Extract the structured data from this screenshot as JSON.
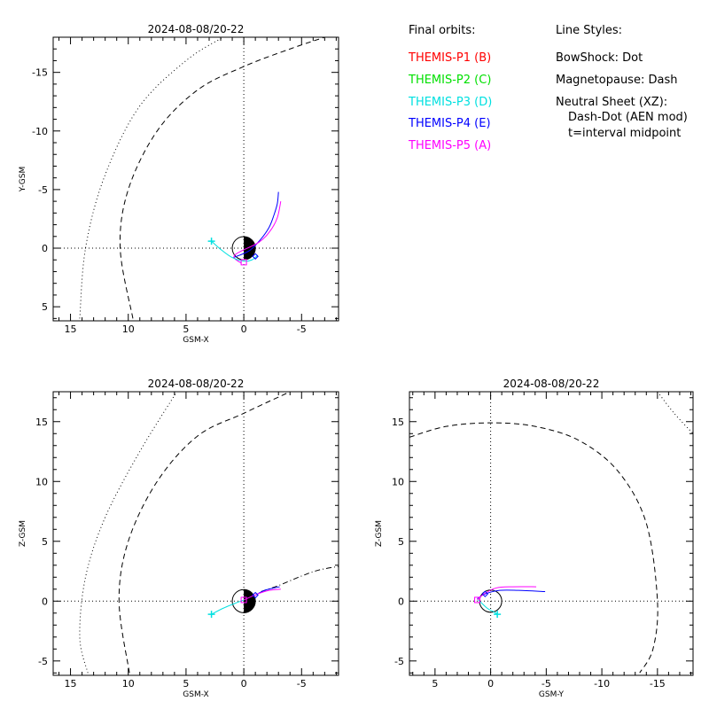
{
  "legend": {
    "orbits_header": "Final orbits:",
    "probes": [
      {
        "label": "THEMIS-P1 (B)",
        "color": "#ff0000"
      },
      {
        "label": "THEMIS-P2 (C)",
        "color": "#00e000"
      },
      {
        "label": "THEMIS-P3 (D)",
        "color": "#00e0e0"
      },
      {
        "label": "THEMIS-P4 (E)",
        "color": "#0000ff"
      },
      {
        "label": "THEMIS-P5 (A)",
        "color": "#ff00ff"
      }
    ],
    "styles_header": "Line Styles:",
    "styles": [
      "BowShock: Dot",
      "Magnetopause: Dash",
      "Neutral Sheet (XZ):",
      "Dash-Dot (AEN mod)",
      "t=interval midpoint"
    ]
  },
  "chart_data": [
    {
      "type": "line",
      "title": "2024-08-08/20-22",
      "xlabel": "GSM-X",
      "ylabel": "Y-GSM",
      "xlim": [
        16.5,
        -8.2
      ],
      "ylim": [
        6.2,
        -18.0
      ],
      "xticks": [
        15,
        10,
        5,
        0,
        -5
      ],
      "xticklabels": [
        "15",
        "10",
        "5",
        "0",
        "-5"
      ],
      "yticks": [
        -15,
        -10,
        -5,
        0,
        5
      ],
      "yticklabels": [
        "-15",
        "-10",
        "-5",
        "0",
        "5"
      ],
      "series": [
        {
          "kind": "bowshock",
          "style": "dot",
          "color": "#000000",
          "x": [
            14.2,
            13.7,
            12.1,
            9.1,
            5.0,
            1.8
          ],
          "y": [
            6.0,
            0.0,
            -6.0,
            -12.0,
            -16.0,
            -18.0
          ]
        },
        {
          "kind": "magnetopause",
          "style": "dash",
          "color": "#000000",
          "x": [
            9.6,
            10.7,
            10.0,
            7.5,
            4.0,
            0.0,
            -4.0,
            -7.0
          ],
          "y": [
            6.0,
            0.0,
            -5.0,
            -10.0,
            -13.5,
            -15.5,
            -17.0,
            -18.0
          ]
        },
        {
          "kind": "orbit",
          "label": "THEMIS-P4 (E)",
          "color": "#0000ff",
          "x": [
            0.9,
            -0.5,
            -1.5,
            -2.2,
            -2.6,
            -2.9,
            -3.0
          ],
          "y": [
            0.8,
            0.2,
            -0.8,
            -1.8,
            -2.8,
            -3.8,
            -4.8
          ]
        },
        {
          "kind": "orbit",
          "label": "THEMIS-P5 (A)",
          "color": "#ff00ff",
          "x": [
            0.2,
            0.8,
            -1.3,
            -2.3,
            -2.9,
            -3.2
          ],
          "y": [
            1.3,
            0.6,
            -0.5,
            -1.5,
            -2.6,
            -4.0
          ]
        },
        {
          "kind": "orbit",
          "label": "THEMIS-P3 (D)",
          "color": "#00e0e0",
          "x": [
            2.8,
            2.0,
            1.0,
            0.0,
            -0.7,
            -1.2
          ],
          "y": [
            -0.6,
            0.1,
            0.8,
            1.1,
            1.0,
            0.6
          ]
        }
      ],
      "markers": [
        {
          "symbol": "plus",
          "color": "#00e0e0",
          "x": 2.8,
          "y": -0.6
        },
        {
          "symbol": "square",
          "color": "#ff00ff",
          "x": 0.0,
          "y": 1.2
        },
        {
          "symbol": "diamond",
          "color": "#0000ff",
          "x": -1.0,
          "y": 0.7
        }
      ]
    },
    {
      "type": "line",
      "title": "2024-08-08/20-22",
      "xlabel": "GSM-X",
      "ylabel": "Z-GSM",
      "xlim": [
        16.5,
        -8.2
      ],
      "ylim": [
        -6.2,
        17.5
      ],
      "xticks": [
        15,
        10,
        5,
        0,
        -5
      ],
      "xticklabels": [
        "15",
        "10",
        "5",
        "0",
        "-5"
      ],
      "yticks": [
        -5,
        0,
        5,
        10,
        15
      ],
      "yticklabels": [
        "-5",
        "0",
        "5",
        "10",
        "15"
      ],
      "series": [
        {
          "kind": "bowshock",
          "style": "dot",
          "color": "#000000",
          "x": [
            13.5,
            14.2,
            13.7,
            12.0,
            9.0,
            5.8
          ],
          "y": [
            -6.0,
            -3.0,
            2.0,
            7.0,
            12.5,
            17.5
          ]
        },
        {
          "kind": "magnetopause",
          "style": "dash",
          "color": "#000000",
          "x": [
            9.9,
            10.8,
            10.0,
            7.5,
            4.0,
            0.0,
            -4.0
          ],
          "y": [
            -6.0,
            0.0,
            5.0,
            10.0,
            13.8,
            15.7,
            17.5
          ]
        },
        {
          "kind": "neutral_sheet",
          "style": "dashdot",
          "color": "#000000",
          "x": [
            -1.5,
            -3.0,
            -5.0,
            -6.5,
            -8.2
          ],
          "y": [
            0.8,
            1.3,
            2.1,
            2.6,
            2.9
          ]
        },
        {
          "kind": "orbit",
          "label": "THEMIS-P4 (E)",
          "color": "#0000ff",
          "x": [
            -1.0,
            -1.8,
            -2.6,
            -3.1
          ],
          "y": [
            0.5,
            0.9,
            1.1,
            1.2
          ]
        },
        {
          "kind": "orbit",
          "label": "THEMIS-P5 (A)",
          "color": "#ff00ff",
          "x": [
            0.0,
            -1.2,
            -2.2,
            -3.2
          ],
          "y": [
            0.1,
            0.6,
            0.9,
            1.0
          ]
        },
        {
          "kind": "orbit",
          "label": "THEMIS-P3 (D)",
          "color": "#00e0e0",
          "x": [
            2.8,
            1.8,
            0.8,
            0.0
          ],
          "y": [
            -1.1,
            -0.6,
            -0.2,
            0.1
          ]
        }
      ],
      "markers": [
        {
          "symbol": "plus",
          "color": "#00e0e0",
          "x": 2.8,
          "y": -1.1
        },
        {
          "symbol": "square",
          "color": "#ff00ff",
          "x": 0.0,
          "y": 0.1
        },
        {
          "symbol": "diamond",
          "color": "#0000ff",
          "x": -1.0,
          "y": 0.5
        }
      ]
    },
    {
      "type": "line",
      "title": "2024-08-08/20-22",
      "xlabel": "GSM-Y",
      "ylabel": "Z-GSM",
      "xlim": [
        7.3,
        -18.2
      ],
      "ylim": [
        -6.2,
        17.5
      ],
      "xticks": [
        5,
        0,
        -5,
        -10,
        -15
      ],
      "xticklabels": [
        "5",
        "0",
        "-5",
        "-10",
        "-15"
      ],
      "yticks": [
        -5,
        0,
        5,
        10,
        15
      ],
      "yticklabels": [
        "-5",
        "0",
        "5",
        "10",
        "15"
      ],
      "series": [
        {
          "kind": "bowshock",
          "style": "dot",
          "color": "#000000",
          "x": [
            -15.0,
            -16.5,
            -18.2
          ],
          "y": [
            17.5,
            15.7,
            14.0
          ]
        },
        {
          "kind": "magnetopause",
          "style": "dash",
          "color": "#000000",
          "x": [
            7.3,
            4.0,
            0.0,
            -4.0,
            -8.0,
            -11.5,
            -14.0,
            -15.0,
            -14.6,
            -13.4
          ],
          "y": [
            13.7,
            14.6,
            14.9,
            14.6,
            13.4,
            10.8,
            6.5,
            0.0,
            -4.0,
            -6.0
          ]
        },
        {
          "kind": "orbit",
          "label": "THEMIS-P4 (E)",
          "color": "#0000ff",
          "x": [
            1.2,
            0.5,
            -0.8,
            -2.5,
            -4.9
          ],
          "y": [
            0.2,
            0.6,
            0.9,
            0.9,
            0.8
          ]
        },
        {
          "kind": "orbit",
          "label": "THEMIS-P5 (A)",
          "color": "#ff00ff",
          "x": [
            1.2,
            0.6,
            -0.5,
            -2.0,
            -4.1
          ],
          "y": [
            0.1,
            0.6,
            1.1,
            1.2,
            1.2
          ]
        },
        {
          "kind": "orbit",
          "label": "THEMIS-P3 (D)",
          "color": "#00e0e0",
          "x": [
            1.1,
            0.3,
            -0.3,
            -0.6
          ],
          "y": [
            0.1,
            -0.6,
            -0.9,
            -1.1
          ]
        }
      ],
      "markers": [
        {
          "symbol": "plus",
          "color": "#00e0e0",
          "x": -0.6,
          "y": -1.1
        },
        {
          "symbol": "square",
          "color": "#ff00ff",
          "x": 1.2,
          "y": 0.1
        },
        {
          "symbol": "diamond",
          "color": "#0000ff",
          "x": 0.5,
          "y": 0.6
        }
      ]
    }
  ]
}
